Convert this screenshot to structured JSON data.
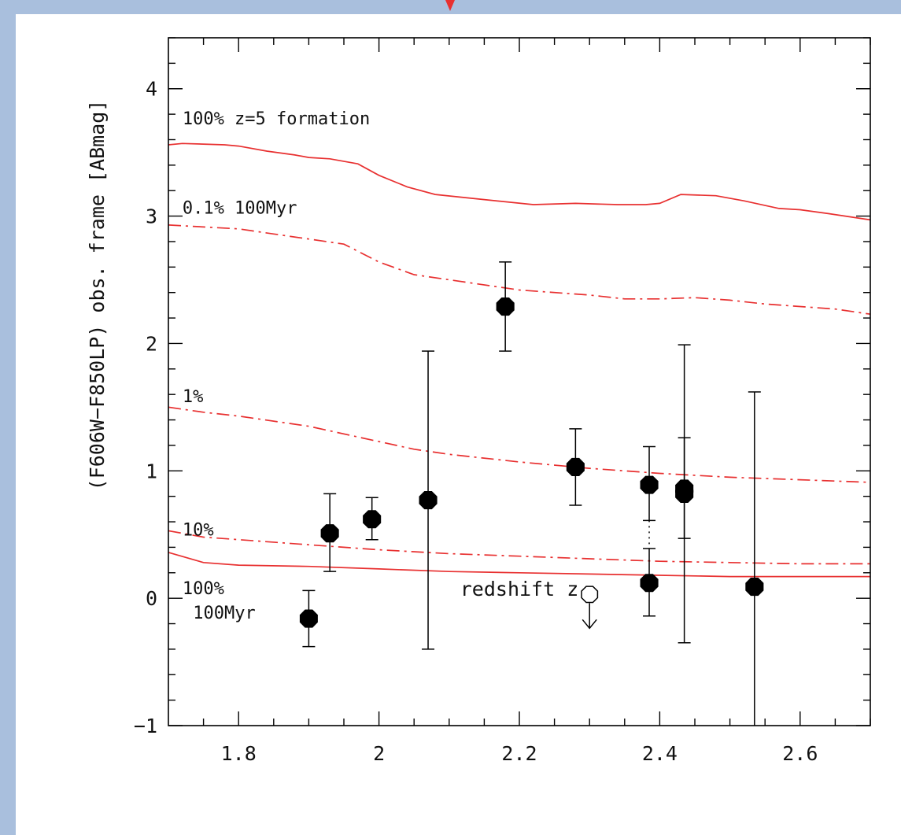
{
  "colors": {
    "model": "#e83030",
    "points": "#000000",
    "background": "#a9bfdd"
  },
  "chart_data": {
    "type": "scatter",
    "title": "",
    "xlabel": "redshift z",
    "ylabel": "(F606W−F850LP) obs. frame [ABmag]",
    "xlim": [
      1.7,
      2.7
    ],
    "ylim": [
      -1,
      4.4
    ],
    "x_ticks": [
      1.8,
      2.0,
      2.2,
      2.4,
      2.6
    ],
    "x_tick_labels": [
      "1.8",
      "2",
      "2.2",
      "2.4",
      "2.6"
    ],
    "y_ticks": [
      -1,
      0,
      1,
      2,
      3,
      4
    ],
    "y_tick_labels": [
      "−1",
      "0",
      "1",
      "2",
      "3",
      "4"
    ],
    "grid": false,
    "legend": "none",
    "models": [
      {
        "label": "100% z=5 formation",
        "style": "solid",
        "x": [
          1.7,
          1.72,
          1.78,
          1.8,
          1.84,
          1.88,
          1.9,
          1.93,
          1.97,
          2.0,
          2.04,
          2.08,
          2.15,
          2.22,
          2.28,
          2.34,
          2.38,
          2.4,
          2.43,
          2.48,
          2.52,
          2.57,
          2.6,
          2.64,
          2.7
        ],
        "y": [
          3.56,
          3.57,
          3.56,
          3.55,
          3.51,
          3.48,
          3.46,
          3.45,
          3.41,
          3.32,
          3.23,
          3.17,
          3.13,
          3.09,
          3.1,
          3.09,
          3.09,
          3.1,
          3.17,
          3.16,
          3.12,
          3.06,
          3.05,
          3.02,
          2.97
        ]
      },
      {
        "label": "0.1% 100Myr",
        "style": "dashdot",
        "x": [
          1.7,
          1.8,
          1.85,
          1.9,
          1.95,
          2.0,
          2.05,
          2.1,
          2.2,
          2.3,
          2.35,
          2.4,
          2.45,
          2.5,
          2.55,
          2.6,
          2.65,
          2.7
        ],
        "y": [
          2.93,
          2.9,
          2.86,
          2.82,
          2.78,
          2.64,
          2.54,
          2.5,
          2.42,
          2.38,
          2.35,
          2.35,
          2.36,
          2.34,
          2.31,
          2.29,
          2.27,
          2.23
        ]
      },
      {
        "label": "1%",
        "style": "dashdot",
        "x": [
          1.7,
          1.75,
          1.8,
          1.9,
          2.0,
          2.05,
          2.1,
          2.2,
          2.3,
          2.4,
          2.5,
          2.6,
          2.7
        ],
        "y": [
          1.5,
          1.46,
          1.43,
          1.35,
          1.23,
          1.17,
          1.13,
          1.07,
          1.02,
          0.98,
          0.95,
          0.93,
          0.91
        ]
      },
      {
        "label": "10%",
        "style": "dashdot",
        "x": [
          1.7,
          1.75,
          1.8,
          1.9,
          2.0,
          2.1,
          2.2,
          2.3,
          2.4,
          2.5,
          2.6,
          2.7
        ],
        "y": [
          0.53,
          0.48,
          0.46,
          0.42,
          0.38,
          0.35,
          0.33,
          0.31,
          0.29,
          0.28,
          0.27,
          0.27
        ]
      },
      {
        "label": "100% 100Myr",
        "style": "solid",
        "x": [
          1.7,
          1.75,
          1.8,
          1.9,
          2.0,
          2.1,
          2.2,
          2.3,
          2.4,
          2.5,
          2.6,
          2.7
        ],
        "y": [
          0.36,
          0.28,
          0.26,
          0.25,
          0.23,
          0.21,
          0.2,
          0.19,
          0.18,
          0.17,
          0.17,
          0.17
        ]
      }
    ],
    "points": [
      {
        "x": 1.9,
        "y": -0.16,
        "yerr_low": -0.38,
        "yerr_high": 0.06
      },
      {
        "x": 1.93,
        "y": 0.51,
        "yerr_low": 0.21,
        "yerr_high": 0.82
      },
      {
        "x": 1.99,
        "y": 0.62,
        "yerr_low": 0.46,
        "yerr_high": 0.79
      },
      {
        "x": 2.07,
        "y": 0.77,
        "yerr_low": -0.4,
        "yerr_high": 1.94
      },
      {
        "x": 2.18,
        "y": 2.29,
        "yerr_low": 1.94,
        "yerr_high": 2.64
      },
      {
        "x": 2.28,
        "y": 1.03,
        "yerr_low": 0.73,
        "yerr_high": 1.33
      },
      {
        "x": 2.385,
        "y": 0.89,
        "yerr_low": 0.61,
        "yerr_high": 1.19
      },
      {
        "x": 2.385,
        "y": 0.12,
        "yerr_low": -0.14,
        "yerr_high": 0.39
      },
      {
        "x": 2.435,
        "y": 0.86,
        "yerr_low": 0.47,
        "yerr_high": 1.26
      },
      {
        "x": 2.435,
        "y": 0.82,
        "yerr_low": -0.35,
        "yerr_high": 1.99
      },
      {
        "x": 2.535,
        "y": 0.09,
        "yerr_low": -1.0,
        "yerr_high": 1.62
      }
    ],
    "upper_limits": [
      {
        "x": 2.3,
        "y": 0.03
      }
    ],
    "annotations": [
      {
        "text": "100% z=5 formation",
        "x": 1.72,
        "y": 3.77
      },
      {
        "text": "0.1% 100Myr",
        "x": 1.72,
        "y": 3.07
      },
      {
        "text": "1%",
        "x": 1.72,
        "y": 1.59
      },
      {
        "text": "10%",
        "x": 1.72,
        "y": 0.54
      },
      {
        "text": "100%",
        "x": 1.72,
        "y": 0.08
      },
      {
        "text": "100Myr",
        "x": 1.735,
        "y": -0.11
      }
    ]
  }
}
